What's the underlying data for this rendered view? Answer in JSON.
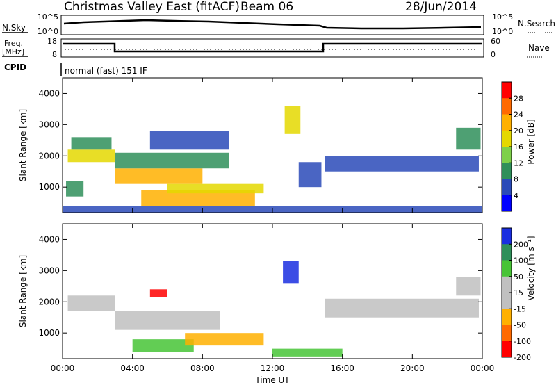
{
  "header": {
    "title": "Christmas Valley East (fitACF)",
    "beam": "Beam 06",
    "date": "28/Jun/2014"
  },
  "top_panels": {
    "nsky_label": "N.Sky",
    "nsky_ticks": [
      "10^5",
      "10^0"
    ],
    "nsearch_label": "N.Search",
    "nsearch_ticks": [
      "10^5",
      "10^0"
    ],
    "freq_label_1": "Freq.",
    "freq_label_2": "[MHz]",
    "freq_ticks": [
      "18",
      "8"
    ],
    "nave_label": "Nave",
    "nave_ticks": [
      "60",
      "0"
    ],
    "cpid_label": "CPID",
    "cpid_text": "normal (fast) 151 IF"
  },
  "chart_data": [
    {
      "type": "heatmap",
      "name": "power",
      "ylabel": "Slant Range [km]",
      "yticks": [
        "1000",
        "2000",
        "3000",
        "4000"
      ],
      "ylim": [
        180,
        4500
      ],
      "xlim_hours": [
        0,
        24
      ],
      "colorbar_label": "Power [dB]",
      "colorbar_ticks": [
        "28",
        "24",
        "20",
        "16",
        "12",
        "8",
        "4"
      ],
      "colorbar_colors": [
        "#ff0000",
        "#ff6a00",
        "#ffb000",
        "#e4d800",
        "#7ed04a",
        "#2f8f5a",
        "#2a4ab8",
        "#0000ff"
      ],
      "regions": [
        {
          "x0": 0.3,
          "x1": 3.0,
          "y0": 1800,
          "y1": 2200,
          "level": 4
        },
        {
          "x0": 0.5,
          "x1": 2.8,
          "y0": 2200,
          "y1": 2600,
          "level": 2
        },
        {
          "x0": 0.2,
          "x1": 1.2,
          "y0": 700,
          "y1": 1200,
          "level": 2
        },
        {
          "x0": 3.0,
          "x1": 8.0,
          "y0": 1100,
          "y1": 1600,
          "level": 5
        },
        {
          "x0": 3.0,
          "x1": 9.5,
          "y0": 1600,
          "y1": 2100,
          "level": 2
        },
        {
          "x0": 4.5,
          "x1": 11.0,
          "y0": 400,
          "y1": 900,
          "level": 5
        },
        {
          "x0": 6.0,
          "x1": 11.5,
          "y0": 800,
          "y1": 1100,
          "level": 4
        },
        {
          "x0": 5.0,
          "x1": 9.5,
          "y0": 2200,
          "y1": 2800,
          "level": 1
        },
        {
          "x0": 12.7,
          "x1": 13.6,
          "y0": 2700,
          "y1": 3600,
          "level": 4
        },
        {
          "x0": 13.5,
          "x1": 14.8,
          "y0": 1000,
          "y1": 1800,
          "level": 1
        },
        {
          "x0": 15.0,
          "x1": 23.8,
          "y0": 1500,
          "y1": 2000,
          "level": 1
        },
        {
          "x0": 22.5,
          "x1": 23.9,
          "y0": 2200,
          "y1": 2900,
          "level": 2
        },
        {
          "x0": 0.0,
          "x1": 24.0,
          "y0": 180,
          "y1": 400,
          "level": 1
        }
      ]
    },
    {
      "type": "heatmap",
      "name": "velocity",
      "ylabel": "Slant Range [km]",
      "yticks": [
        "1000",
        "2000",
        "3000",
        "4000"
      ],
      "ylim": [
        180,
        4500
      ],
      "xlabel": "Time UT",
      "xticks": [
        "00:00",
        "04:00",
        "08:00",
        "12:00",
        "16:00",
        "20:00",
        "00:00"
      ],
      "xlim_hours": [
        0,
        24
      ],
      "colorbar_label": "Velocity [m s⁻¹]",
      "colorbar_ticks": [
        "200",
        "100",
        "50",
        "15",
        "-15",
        "-50",
        "-100",
        "-200"
      ],
      "colorbar_colors": [
        "#1a2ee0",
        "#2f8f5a",
        "#47c436",
        "#c0c0c0",
        "#c0c0c0",
        "#ffb000",
        "#ff6a00",
        "#ff0000"
      ],
      "regions": [
        {
          "x0": 0.3,
          "x1": 3.0,
          "y0": 1700,
          "y1": 2200,
          "level": 3
        },
        {
          "x0": 3.0,
          "x1": 9.0,
          "y0": 1100,
          "y1": 1700,
          "level": 3
        },
        {
          "x0": 4.0,
          "x1": 7.5,
          "y0": 400,
          "y1": 800,
          "level": 5
        },
        {
          "x0": 7.0,
          "x1": 11.5,
          "y0": 600,
          "y1": 1000,
          "level": 2
        },
        {
          "x0": 5.0,
          "x1": 6.0,
          "y0": 2150,
          "y1": 2400,
          "level": 0
        },
        {
          "x0": 12.6,
          "x1": 13.5,
          "y0": 2600,
          "y1": 3300,
          "level": 7
        },
        {
          "x0": 12.0,
          "x1": 16.0,
          "y0": 250,
          "y1": 500,
          "level": 5
        },
        {
          "x0": 15.0,
          "x1": 23.8,
          "y0": 1500,
          "y1": 2100,
          "level": 3
        },
        {
          "x0": 22.5,
          "x1": 23.9,
          "y0": 2200,
          "y1": 2800,
          "level": 3
        }
      ]
    }
  ]
}
